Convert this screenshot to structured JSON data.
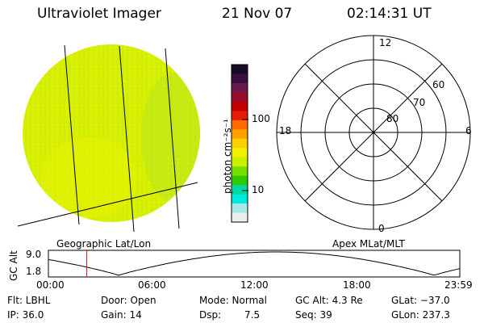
{
  "header": {
    "title": "Ultraviolet Imager",
    "date": "21 Nov 07",
    "time": "02:14:31 UT"
  },
  "colorbar": {
    "unit_label": "photon cm⁻²s⁻¹",
    "tick_100": "100",
    "tick_10": "10",
    "colors_top_to_bottom": [
      "#1a0a24",
      "#3a1040",
      "#6a1a4a",
      "#9a0a2a",
      "#c00000",
      "#e81a0a",
      "#ff6a00",
      "#ffa000",
      "#ffd000",
      "#f0f000",
      "#c8f000",
      "#78e000",
      "#30c800",
      "#00d8a0",
      "#00e8e0",
      "#a8e8e8",
      "#e8f0f0"
    ]
  },
  "globe": {
    "caption": "Geographic Lat/Lon",
    "fill_color": "#dcf000"
  },
  "polar": {
    "caption": "Apex MLat/MLT",
    "mlt_12": "12",
    "mlt_18": "18",
    "mlt_6": "6",
    "mlt_0": "0",
    "lat_60": "60",
    "lat_70": "70",
    "lat_80": "80"
  },
  "altitude_plot": {
    "ylabel": "GC Alt",
    "ytick_top": "9.0",
    "ytick_bottom": "1.8",
    "xticks": [
      "00:00",
      "06:00",
      "12:00",
      "18:00",
      "23:59"
    ],
    "marker_color": "#ff0000",
    "marker_time_hours": 2.24
  },
  "status": {
    "row1": {
      "flt": "Flt: LBHL",
      "door": "Door: Open",
      "mode": "Mode: Normal",
      "gcalt": "GC Alt: 4.3 Re",
      "glat": "GLat: −37.0"
    },
    "row2": {
      "ip": "IP: 36.0",
      "gain": "Gain: 14",
      "dsp_label": "Dsp:",
      "dsp_value": "7.5",
      "seq": "Seq: 39",
      "glon": "GLon: 237.3"
    }
  }
}
